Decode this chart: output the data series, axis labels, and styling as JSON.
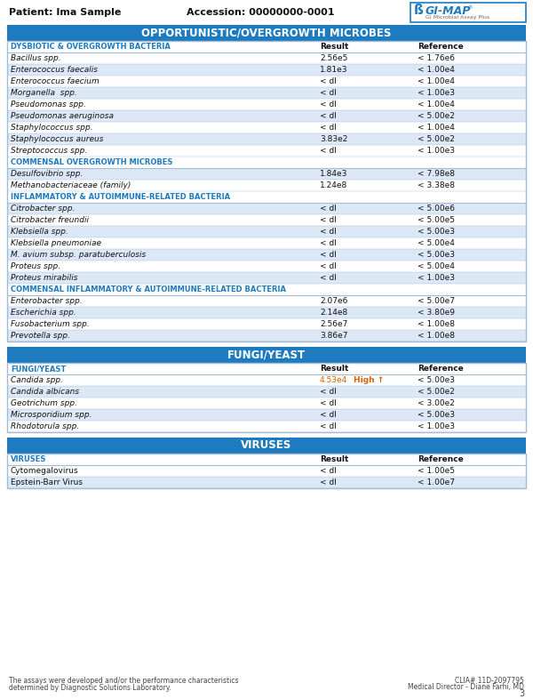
{
  "patient": "Patient: Ima Sample",
  "accession": "Accession: 00000000-0001",
  "logo_text": "GI-MAP",
  "logo_sub": "GI Microbial Assay Plus",
  "page_number": "3",
  "footer_left1": "The assays were developed and/or the performance characteristics",
  "footer_left2": "determined by Diagnostic Solutions Laboratory.",
  "footer_right1": "CLIA# 11D-2097795",
  "footer_right2": "Medical Director - Diane Farhi, MD",
  "section1_title": "OPPORTUNISTIC/OVERGROWTH MICROBES",
  "section2_title": "FUNGI/YEAST",
  "section3_title": "VIRUSES",
  "header_bg": "#1e7bbf",
  "subheader_text": "#1e7bbf",
  "row_shaded": "#dce8f5",
  "row_light": "#ffffff",
  "border_color": "#a0bcd8",
  "flag_color": "#e06000",
  "highlight_color": "#e06000",
  "sections": [
    {
      "subsection": "DYSBIOTIC & OVERGROWTH BACTERIA",
      "is_col_header": true,
      "rows": [
        {
          "name": "Bacillus spp.",
          "italic": true,
          "result": "2.56e5",
          "reference": "< 1.76e6",
          "shaded": false
        },
        {
          "name": "Enterococcus faecalis",
          "italic": true,
          "result": "1.81e3",
          "reference": "< 1.00e4",
          "shaded": true
        },
        {
          "name": "Enterococcus faecium",
          "italic": true,
          "result": "< dl",
          "reference": "< 1.00e4",
          "shaded": false
        },
        {
          "name": "Morganella  spp.",
          "italic": true,
          "result": "< dl",
          "reference": "< 1.00e3",
          "shaded": true
        },
        {
          "name": "Pseudomonas spp.",
          "italic": true,
          "result": "< dl",
          "reference": "< 1.00e4",
          "shaded": false
        },
        {
          "name": "Pseudomonas aeruginosa",
          "italic": true,
          "result": "< dl",
          "reference": "< 5.00e2",
          "shaded": true
        },
        {
          "name": "Staphylococcus spp.",
          "italic": true,
          "result": "< dl",
          "reference": "< 1.00e4",
          "shaded": false
        },
        {
          "name": "Staphylococcus aureus",
          "italic": true,
          "result": "3.83e2",
          "reference": "< 5.00e2",
          "shaded": true
        },
        {
          "name": "Streptococcus spp.",
          "italic": true,
          "result": "< dl",
          "reference": "< 1.00e3",
          "shaded": false
        }
      ]
    },
    {
      "subsection": "COMMENSAL OVERGROWTH MICROBES",
      "is_col_header": false,
      "rows": [
        {
          "name": "Desulfovibrio spp.",
          "italic": true,
          "result": "1.84e3",
          "reference": "< 7.98e8",
          "shaded": true
        },
        {
          "name": "Methanobacteriaceae (family)",
          "italic": true,
          "result": "1.24e8",
          "reference": "< 3.38e8",
          "shaded": false
        }
      ]
    },
    {
      "subsection": "INFLAMMATORY & AUTOIMMUNE-RELATED BACTERIA",
      "is_col_header": false,
      "rows": [
        {
          "name": "Citrobacter spp.",
          "italic": true,
          "result": "< dl",
          "reference": "< 5.00e6",
          "shaded": true
        },
        {
          "name": "Citrobacter freundii",
          "italic": true,
          "result": "< dl",
          "reference": "< 5.00e5",
          "shaded": false
        },
        {
          "name": "Klebsiella spp.",
          "italic": true,
          "result": "< dl",
          "reference": "< 5.00e3",
          "shaded": true
        },
        {
          "name": "Klebsiella pneumoniae",
          "italic": true,
          "result": "< dl",
          "reference": "< 5.00e4",
          "shaded": false
        },
        {
          "name": "M. avium subsp. paratuberculosis",
          "italic": true,
          "result": "< dl",
          "reference": "< 5.00e3",
          "shaded": true
        },
        {
          "name": "Proteus spp.",
          "italic": true,
          "result": "< dl",
          "reference": "< 5.00e4",
          "shaded": false
        },
        {
          "name": "Proteus mirabilis",
          "italic": true,
          "result": "< dl",
          "reference": "< 1.00e3",
          "shaded": true
        }
      ]
    },
    {
      "subsection": "COMMENSAL INFLAMMATORY & AUTOIMMUNE-RELATED BACTERIA",
      "is_col_header": false,
      "rows": [
        {
          "name": "Enterobacter spp.",
          "italic": true,
          "result": "2.07e6",
          "reference": "< 5.00e7",
          "shaded": false
        },
        {
          "name": "Escherichia spp.",
          "italic": true,
          "result": "2.14e8",
          "reference": "< 3.80e9",
          "shaded": true
        },
        {
          "name": "Fusobacterium spp.",
          "italic": true,
          "result": "2.56e7",
          "reference": "< 1.00e8",
          "shaded": false
        },
        {
          "name": "Prevotella spp.",
          "italic": true,
          "result": "3.86e7",
          "reference": "< 1.00e8",
          "shaded": true
        }
      ]
    }
  ],
  "fungi_rows": [
    {
      "name": "Candida spp.",
      "italic": true,
      "result": "4.53e4",
      "flag": "High ↑",
      "reference": "< 5.00e3",
      "shaded": false,
      "highlight": true
    },
    {
      "name": "Candida albicans",
      "italic": true,
      "result": "< dl",
      "flag": "",
      "reference": "< 5.00e2",
      "shaded": true,
      "highlight": false
    },
    {
      "name": "Geotrichum spp.",
      "italic": true,
      "result": "< dl",
      "flag": "",
      "reference": "< 3.00e2",
      "shaded": false,
      "highlight": false
    },
    {
      "name": "Microsporidium spp.",
      "italic": true,
      "result": "< dl",
      "flag": "",
      "reference": "< 5.00e3",
      "shaded": true,
      "highlight": false
    },
    {
      "name": "Rhodotorula spp.",
      "italic": true,
      "result": "< dl",
      "flag": "",
      "reference": "< 1.00e3",
      "shaded": false,
      "highlight": false
    }
  ],
  "virus_rows": [
    {
      "name": "Cytomegalovirus",
      "italic": false,
      "result": "< dl",
      "reference": "< 1.00e5",
      "shaded": false
    },
    {
      "name": "Epstein-Barr Virus",
      "italic": false,
      "result": "< dl",
      "reference": "< 1.00e7",
      "shaded": true
    }
  ]
}
